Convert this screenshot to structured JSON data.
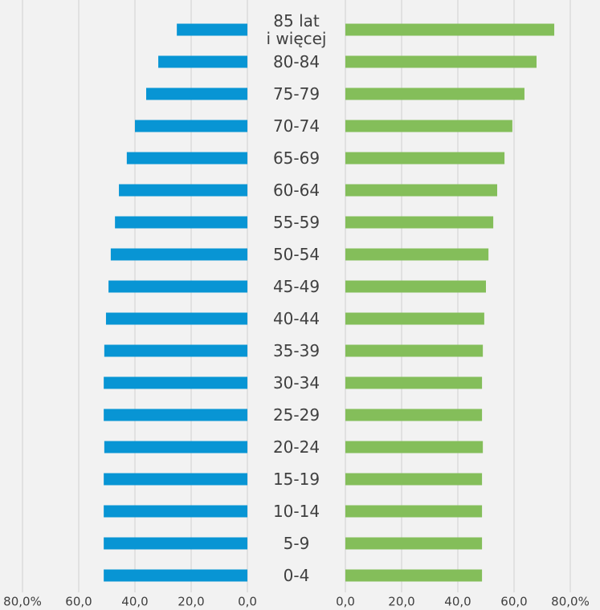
{
  "chart_data": {
    "type": "butterfly",
    "categories": [
      "85 lat\ni więcej",
      "80-84",
      "75-79",
      "70-74",
      "65-69",
      "60-64",
      "55-59",
      "50-54",
      "45-49",
      "40-44",
      "35-39",
      "30-34",
      "25-29",
      "20-24",
      "15-19",
      "10-14",
      "5-9",
      "0-4"
    ],
    "grid": true,
    "series": [
      {
        "color": "#0895d4",
        "side": "left",
        "values": [
          25.1,
          31.7,
          36.0,
          40.0,
          42.9,
          45.7,
          47.1,
          48.6,
          49.4,
          50.3,
          50.9,
          51.1,
          51.1,
          50.9,
          51.1,
          51.1,
          51.1,
          51.1
        ],
        "xlim": [
          0,
          80
        ],
        "xticks": [
          {
            "value": 0,
            "label": "0,0"
          },
          {
            "value": 20,
            "label": "20,0"
          },
          {
            "value": 40,
            "label": "40,0"
          },
          {
            "value": 60,
            "label": "60,0"
          },
          {
            "value": 80,
            "label": "80,0%"
          }
        ]
      },
      {
        "color": "#84be5a",
        "side": "right",
        "values": [
          74.3,
          68.0,
          63.7,
          59.4,
          56.6,
          54.0,
          52.6,
          50.9,
          50.0,
          49.4,
          48.9,
          48.6,
          48.6,
          48.9,
          48.6,
          48.6,
          48.6,
          48.6
        ],
        "xlim": [
          0,
          80
        ],
        "xticks": [
          {
            "value": 0,
            "label": "0,0"
          },
          {
            "value": 20,
            "label": "20,0"
          },
          {
            "value": 40,
            "label": "40,0"
          },
          {
            "value": 60,
            "label": "60,0"
          },
          {
            "value": 80,
            "label": "80,0%"
          }
        ]
      }
    ]
  }
}
